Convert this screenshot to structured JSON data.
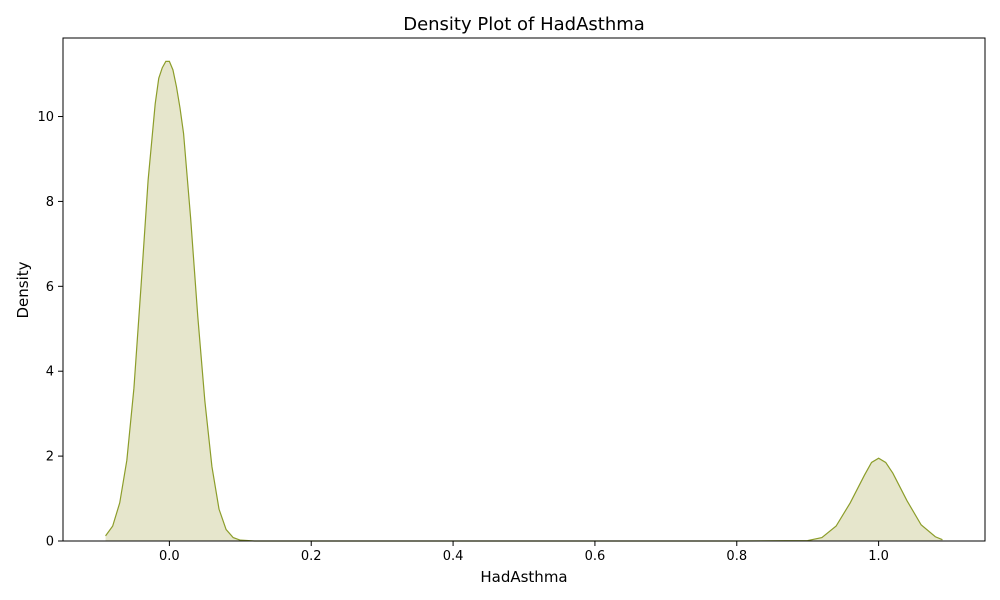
{
  "chart_data": {
    "type": "area",
    "title": "Density Plot of HadAsthma",
    "xlabel": "HadAsthma",
    "ylabel": "Density",
    "xlim": [
      -0.15,
      1.15
    ],
    "ylim": [
      0,
      11.85
    ],
    "x_ticks": [
      0.0,
      0.2,
      0.4,
      0.6,
      0.8,
      1.0
    ],
    "x_tick_labels": [
      "0.0",
      "0.2",
      "0.4",
      "0.6",
      "0.8",
      "1.0"
    ],
    "y_ticks": [
      0,
      2,
      4,
      6,
      8,
      10
    ],
    "y_tick_labels": [
      "0",
      "2",
      "4",
      "6",
      "8",
      "10"
    ],
    "grid": false,
    "legend": "none",
    "line_color": "#8c9d2a",
    "fill_color": "#e6e6cc",
    "series": [
      {
        "x": [
          -0.09,
          -0.08,
          -0.07,
          -0.06,
          -0.05,
          -0.04,
          -0.03,
          -0.02,
          -0.015,
          -0.01,
          -0.005,
          0.0,
          0.005,
          0.01,
          0.015,
          0.02,
          0.03,
          0.04,
          0.05,
          0.06,
          0.07,
          0.08,
          0.09,
          0.1,
          0.12,
          0.15,
          0.2,
          0.4,
          0.6,
          0.8,
          0.9,
          0.92,
          0.94,
          0.96,
          0.98,
          0.99,
          1.0,
          1.01,
          1.02,
          1.04,
          1.06,
          1.08,
          1.09
        ],
        "y": [
          0.12,
          0.35,
          0.9,
          1.9,
          3.6,
          6.0,
          8.5,
          10.3,
          10.9,
          11.15,
          11.3,
          11.3,
          11.1,
          10.7,
          10.2,
          9.6,
          7.6,
          5.3,
          3.3,
          1.75,
          0.75,
          0.27,
          0.08,
          0.02,
          0.0,
          0.0,
          0.0,
          0.0,
          0.0,
          0.0,
          0.01,
          0.08,
          0.35,
          0.9,
          1.55,
          1.85,
          1.95,
          1.85,
          1.6,
          0.95,
          0.38,
          0.1,
          0.03
        ]
      }
    ]
  }
}
